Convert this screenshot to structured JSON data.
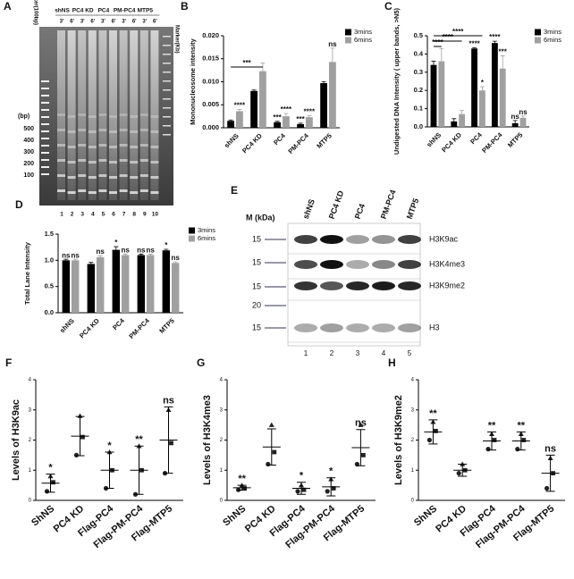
{
  "gel": {
    "label": "A",
    "marker_left": "Marker(100bp)",
    "marker_right": "Marker(Kb)",
    "groups": [
      "shNS",
      "PC4 KD",
      "PC4",
      "PM-PC4",
      "MTP5"
    ],
    "times": [
      "3'",
      "6'"
    ],
    "unit": "(bp)",
    "sizes": [
      500,
      400,
      300,
      200,
      100
    ],
    "lanes": [
      1,
      2,
      3,
      4,
      5,
      6,
      7,
      8,
      9,
      10
    ]
  },
  "blot": {
    "label": "E",
    "unit": "M (kDa)",
    "markers": [
      15,
      15,
      15,
      20,
      15
    ],
    "groups": [
      "shNS",
      "PC4 KD",
      "PC4",
      "PM-PC4",
      "MTP5"
    ],
    "rows": [
      "H3K9ac",
      "H3K4me3",
      "H3K9me2",
      "H3"
    ],
    "lanes": [
      1,
      2,
      3,
      4,
      5
    ]
  },
  "chart_data": [
    {
      "type": "bar",
      "label": "B",
      "ylabel": "Mononucleosome intensity",
      "categories": [
        "shNS",
        "PC4 KD",
        "PC4",
        "PM-PC4",
        "MTP5"
      ],
      "series": [
        {
          "name": "3mins",
          "color": "#000000",
          "values": [
            0.0015,
            0.008,
            0.0012,
            0.0008,
            0.0097
          ],
          "errors": [
            0.0002,
            0.0002,
            0.0002,
            0.0002,
            0.0003
          ],
          "sig": [
            null,
            null,
            "***",
            "***",
            null
          ]
        },
        {
          "name": "6mins",
          "color": "#a0a0a0",
          "values": [
            0.0036,
            0.0123,
            0.0025,
            0.0023,
            0.0143
          ],
          "errors": [
            0.0004,
            0.0018,
            0.0006,
            0.0003,
            0.003
          ],
          "sig": [
            "****",
            null,
            "****",
            "****",
            "ns"
          ]
        }
      ],
      "ylim": [
        0,
        0.02
      ],
      "yticks": [
        {
          "value": 0,
          "label": "0.000"
        },
        {
          "value": 0.005,
          "label": "0.005"
        },
        {
          "value": 0.01,
          "label": "0.010"
        },
        {
          "value": 0.015,
          "label": "0.015"
        },
        {
          "value": 0.02,
          "label": "0.020"
        }
      ],
      "brackets": [
        "***"
      ]
    },
    {
      "type": "bar",
      "label": "C",
      "ylabel": "Undigested DNA Intensity ( upper bands, >N5)",
      "categories": [
        "shNS",
        "PC4 KD",
        "PC4",
        "PM-PC4",
        "MTP5"
      ],
      "series": [
        {
          "name": "3mins",
          "color": "#000000",
          "values": [
            0.34,
            0.03,
            0.43,
            0.46,
            0.02
          ],
          "errors": [
            0.02,
            0.015,
            0.005,
            0.01,
            0.015
          ],
          "sig": [
            null,
            null,
            "****",
            "****",
            "ns"
          ]
        },
        {
          "name": "6mins",
          "color": "#a0a0a0",
          "values": [
            0.36,
            0.07,
            0.2,
            0.32,
            0.05
          ],
          "errors": [
            0.07,
            0.02,
            0.02,
            0.07,
            0.01
          ],
          "sig": [
            null,
            null,
            "*",
            "***",
            "ns"
          ]
        }
      ],
      "ylim": [
        0,
        0.5
      ],
      "yticks": [
        {
          "value": 0,
          "label": "0.0"
        },
        0.1,
        0.2,
        0.3,
        0.4,
        0.5
      ],
      "brackets": [
        "****",
        "****",
        "****"
      ]
    },
    {
      "type": "bar",
      "label": "D",
      "ylabel": "Total Lane Intensity",
      "categories": [
        "shNS",
        "PC4 KD",
        "PC4",
        "PM-PC4",
        "MTP5"
      ],
      "series": [
        {
          "name": "3mins",
          "color": "#000000",
          "values": [
            1.0,
            0.93,
            1.2,
            1.1,
            1.19
          ],
          "errors": [
            0.02,
            0.03,
            0.06,
            0.02,
            0.02
          ],
          "sig": [
            "ns",
            null,
            "*",
            "ns",
            "*"
          ]
        },
        {
          "name": "6mins",
          "color": "#a0a0a0",
          "values": [
            1.0,
            1.06,
            1.1,
            1.1,
            0.95
          ],
          "errors": [
            0.02,
            0.03,
            0.02,
            0.02,
            0.02
          ],
          "sig": [
            "ns",
            "ns",
            "ns",
            "ns",
            "ns"
          ]
        }
      ],
      "ylim": [
        0,
        1.5
      ],
      "yticks": [
        {
          "value": 0,
          "label": "0.0"
        },
        0.5,
        {
          "value": 1,
          "label": "1.0"
        },
        1.5
      ],
      "brackets": []
    },
    {
      "type": "dot",
      "label": "F",
      "ylabel": "Levels of H3K9ac",
      "categories": [
        "ShNS",
        "PC4 KD",
        "Flag-PC4",
        "Flag-PM-PC4",
        "Flag-MTP5"
      ],
      "points": [
        [
          0.3,
          0.6,
          0.8
        ],
        [
          1.5,
          2.1,
          2.8
        ],
        [
          0.4,
          1.0,
          1.6
        ],
        [
          0.2,
          1.0,
          1.8
        ],
        [
          0.9,
          1.9,
          3.0
        ]
      ],
      "mean": [
        0.57,
        2.13,
        1.0,
        1.0,
        2.0
      ],
      "sd": [
        0.3,
        0.65,
        0.6,
        0.8,
        1.1
      ],
      "sig": [
        "*",
        null,
        "*",
        "**",
        "ns"
      ],
      "ylim": [
        0,
        4
      ],
      "yticks": [
        0,
        1,
        2,
        3,
        4
      ]
    },
    {
      "type": "dot",
      "label": "G",
      "ylabel": "Levels of H3K4me3",
      "categories": [
        "ShNS",
        "PC4 KD",
        "Flag-PC4",
        "Flag-PM-PC4",
        "Flag-MTP5"
      ],
      "points": [
        [
          0.35,
          0.4,
          0.5
        ],
        [
          1.2,
          1.6,
          2.5
        ],
        [
          0.3,
          0.35,
          0.5
        ],
        [
          0.3,
          0.4,
          0.7
        ],
        [
          1.2,
          1.5,
          2.5
        ]
      ],
      "mean": [
        0.42,
        1.77,
        0.4,
        0.45,
        1.75
      ],
      "sd": [
        0.08,
        0.6,
        0.2,
        0.3,
        0.6
      ],
      "sig": [
        "**",
        null,
        "*",
        "*",
        "ns"
      ],
      "ylim": [
        0,
        4
      ],
      "yticks": [
        0,
        1,
        2,
        3,
        4
      ]
    },
    {
      "type": "dot",
      "label": "H",
      "ylabel": "Levels of H3K9me2",
      "categories": [
        "ShNS",
        "PC4 KD",
        "Flag-PC4",
        "Flag-PM-PC4",
        "Flag-MTP5"
      ],
      "points": [
        [
          2.0,
          2.3,
          2.6
        ],
        [
          0.9,
          1.0,
          1.2
        ],
        [
          1.7,
          2.0,
          2.2
        ],
        [
          1.7,
          2.0,
          2.2
        ],
        [
          0.4,
          0.9,
          1.4
        ]
      ],
      "mean": [
        2.27,
        1.0,
        1.97,
        1.97,
        0.9
      ],
      "sd": [
        0.4,
        0.2,
        0.3,
        0.3,
        0.6
      ],
      "sig": [
        "**",
        null,
        "**",
        "**",
        "ns"
      ],
      "ylim": [
        0,
        4
      ],
      "yticks": [
        0,
        1,
        2,
        3,
        4
      ]
    }
  ]
}
